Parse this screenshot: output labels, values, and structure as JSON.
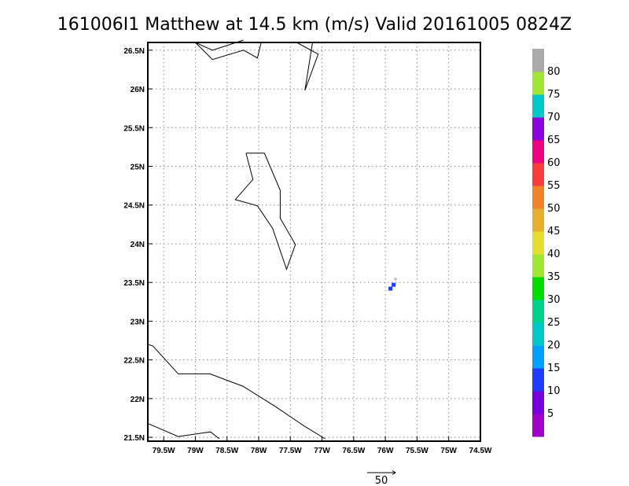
{
  "chart_data": {
    "type": "map",
    "title": "161006I1 Matthew at 14.5 km (m/s) Valid 20161005 0824Z",
    "xlim": [
      -79.75,
      -74.5
    ],
    "ylim": [
      21.45,
      26.6
    ],
    "grid": true,
    "x_ticks": [
      {
        "value": -79.5,
        "label": "79.5W"
      },
      {
        "value": -79,
        "label": "79W"
      },
      {
        "value": -78.5,
        "label": "78.5W"
      },
      {
        "value": -78,
        "label": "78W"
      },
      {
        "value": -77.5,
        "label": "77.5W"
      },
      {
        "value": -77,
        "label": "77W"
      },
      {
        "value": -76.5,
        "label": "76.5W"
      },
      {
        "value": -76,
        "label": "76W"
      },
      {
        "value": -75.5,
        "label": "75.5W"
      },
      {
        "value": -75,
        "label": "75W"
      },
      {
        "value": -74.5,
        "label": "74.5W"
      }
    ],
    "y_ticks": [
      {
        "value": 21.5,
        "label": "21.5N"
      },
      {
        "value": 22,
        "label": "22N"
      },
      {
        "value": 22.5,
        "label": "22.5N"
      },
      {
        "value": 23,
        "label": "23N"
      },
      {
        "value": 23.5,
        "label": "23.5N"
      },
      {
        "value": 24,
        "label": "24N"
      },
      {
        "value": 24.5,
        "label": "24.5N"
      },
      {
        "value": 25,
        "label": "25N"
      },
      {
        "value": 25.5,
        "label": "25.5N"
      },
      {
        "value": 26,
        "label": "26N"
      },
      {
        "value": 26.5,
        "label": "26.5N"
      }
    ],
    "coastlines": [
      [
        [
          -79,
          26.6
        ],
        [
          -78.73,
          26.38
        ],
        [
          -78.24,
          26.5
        ],
        [
          -78.02,
          26.4
        ],
        [
          -77.96,
          26.6
        ]
      ],
      [
        [
          -79,
          26.6
        ],
        [
          -78.73,
          26.5
        ],
        [
          -78.24,
          26.63
        ]
      ],
      [
        [
          -77.4,
          26.6
        ],
        [
          -77.06,
          26.45
        ],
        [
          -77.27,
          25.98
        ],
        [
          -77.15,
          26.6
        ]
      ],
      [
        [
          -78.2,
          25.17
        ],
        [
          -77.91,
          25.17
        ],
        [
          -77.66,
          24.69
        ],
        [
          -77.66,
          24.33
        ],
        [
          -77.42,
          23.99
        ],
        [
          -77.56,
          23.67
        ],
        [
          -77.78,
          24.2
        ],
        [
          -78.02,
          24.49
        ],
        [
          -78.37,
          24.57
        ],
        [
          -78.09,
          24.83
        ],
        [
          -78.2,
          25.17
        ]
      ],
      [
        [
          -79.75,
          22.7
        ],
        [
          -79.67,
          22.68
        ],
        [
          -79.27,
          22.32
        ],
        [
          -78.77,
          22.32
        ],
        [
          -78.25,
          22.16
        ],
        [
          -77.74,
          21.9
        ],
        [
          -77.29,
          21.65
        ],
        [
          -76.95,
          21.48
        ]
      ],
      [
        [
          -79.75,
          21.68
        ],
        [
          -79.27,
          21.51
        ],
        [
          -78.76,
          21.57
        ],
        [
          -78.62,
          21.48
        ]
      ]
    ],
    "colorbar": {
      "min": 0,
      "max": 85,
      "step": 5,
      "labels": [
        "5",
        "10",
        "15",
        "20",
        "25",
        "30",
        "35",
        "40",
        "45",
        "50",
        "55",
        "60",
        "65",
        "70",
        "75",
        "80"
      ],
      "colors": [
        "#a000c8",
        "#7800dc",
        "#1e3cff",
        "#00a0ff",
        "#00c8c8",
        "#00d28c",
        "#00dc00",
        "#a0e632",
        "#e6dc32",
        "#e6af2d",
        "#f08228",
        "#fa3c3c",
        "#f00082",
        "#8c00dc",
        "#00c8c8",
        "#a0e632",
        "#aaaaaa"
      ]
    },
    "wind_cells": [
      {
        "lon": -75.92,
        "lat": 23.42,
        "speed": 10
      },
      {
        "lon": -75.87,
        "lat": 23.47,
        "speed": 10
      }
    ],
    "wind_vector": {
      "lon": -75.84,
      "lat": 23.52,
      "u": 0,
      "v": 5
    },
    "reference_vector": {
      "label": "50",
      "value": 50
    }
  }
}
